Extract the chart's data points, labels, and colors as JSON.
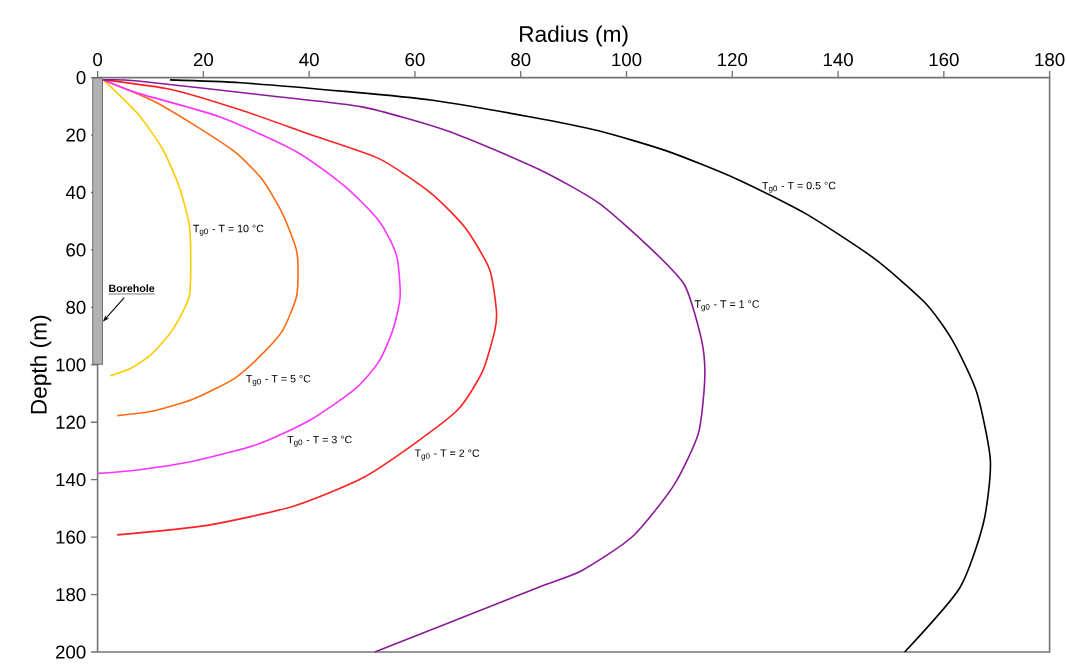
{
  "chart_data": {
    "type": "line",
    "xlabel": "Radius (m)",
    "ylabel": "Depth (m)",
    "xlim": [
      0,
      180
    ],
    "ylim": [
      200,
      0
    ],
    "xticks": [
      0,
      20,
      40,
      60,
      80,
      100,
      120,
      140,
      160,
      180
    ],
    "yticks": [
      0,
      20,
      40,
      60,
      80,
      100,
      120,
      140,
      160,
      180,
      200
    ],
    "series": [
      {
        "name": "T$_{g0}$ - T = 10 °C",
        "color": "#ffcc00",
        "x": [
          1.1,
          7.6,
          12.2,
          15.4,
          17.3,
          17.6,
          17.3,
          14.1,
          10.2,
          6.3,
          2.4
        ],
        "values": [
          0.8,
          12.6,
          24.6,
          37.8,
          51,
          62,
          76.3,
          88,
          96.3,
          101.2,
          103.8
        ]
      },
      {
        "name": "T$_{g0}$ - T = 5 °C",
        "color": "#ff6a10",
        "x": [
          1.1,
          10.2,
          18,
          25.9,
          31.1,
          35,
          37.5,
          37.9,
          37.6,
          35,
          31.1,
          25.9,
          18,
          10.2,
          3.7
        ],
        "values": [
          0.8,
          7.8,
          16.2,
          25.8,
          35.4,
          47.5,
          59.4,
          66,
          76.3,
          88,
          96.3,
          104.7,
          112,
          116.2,
          117.7
        ]
      },
      {
        "name": "T$_{g0}$ - T = 3 °C",
        "color": "#ff33ff",
        "x": [
          1.1,
          7.6,
          23.3,
          37.6,
          46.7,
          53.2,
          56.5,
          57.2,
          55.8,
          53.2,
          48.7,
          40.2,
          30.4,
          18,
          7.6,
          0.1
        ],
        "values": [
          0.8,
          5.4,
          13.8,
          25.8,
          37.8,
          49.9,
          61.8,
          76.3,
          88,
          98.8,
          108.4,
          119.2,
          127.6,
          133.6,
          136.6,
          137.8
        ]
      },
      {
        "name": "T$_{g0}$ - T = 2 °C",
        "color": "#ff2020",
        "x": [
          1.1,
          14.1,
          27.1,
          40.2,
          53.2,
          63,
          69.5,
          74.1,
          75.4,
          75.1,
          72.8,
          68.2,
          59.8,
          50,
          36.9,
          20.7,
          3.7
        ],
        "values": [
          0.8,
          4.2,
          11.3,
          19.8,
          28.2,
          40.2,
          52.3,
          66.7,
          81,
          88,
          102.2,
          115.5,
          127.6,
          139.5,
          149.3,
          155.9,
          159.2
        ]
      },
      {
        "name": "T$_{g0}$ - T = 1 °C",
        "color": "#8b1a9b",
        "x": [
          1.1,
          7.6,
          33.7,
          50,
          66.2,
          83.3,
          94.7,
          104.4,
          111,
          114.2,
          114.8,
          113.6,
          109,
          101.2,
          91.5,
          83.3,
          66.2,
          52.4
        ],
        "values": [
          0.8,
          1.2,
          6.6,
          10.2,
          18.6,
          31.8,
          43.6,
          59.2,
          72.3,
          91.4,
          104.7,
          123.8,
          141.8,
          159.7,
          171.7,
          177.5,
          190,
          200
        ]
      },
      {
        "name": "T$_{g0}$ - T = 0.5 °C",
        "color": "#000000",
        "x": [
          13.7,
          27.1,
          46.7,
          63,
          81.9,
          94.7,
          107.7,
          120.7,
          133.7,
          146.7,
          156.4,
          161.6,
          166.2,
          168.8,
          167.5,
          163,
          152.6
        ],
        "values": [
          0.8,
          1.8,
          4.8,
          7.8,
          13.7,
          18.5,
          25.6,
          35.2,
          47.2,
          62.8,
          78.3,
          91.4,
          109.5,
          133.4,
          155,
          177.7,
          200
        ]
      }
    ],
    "annotations": [
      "Borehole"
    ]
  }
}
